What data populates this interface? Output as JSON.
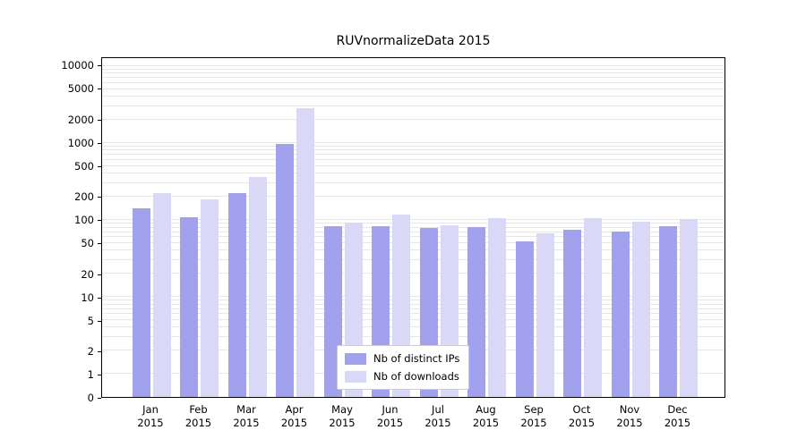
{
  "title": "RUVnormalizeData 2015",
  "chart_data": {
    "type": "bar",
    "scale": "symlog",
    "title": "RUVnormalizeData 2015",
    "categories": [
      "Jan",
      "Feb",
      "Mar",
      "Apr",
      "May",
      "Jun",
      "Jul",
      "Aug",
      "Sep",
      "Oct",
      "Nov",
      "Dec"
    ],
    "category_year": "2015",
    "series": [
      {
        "name": "Nb of distinct IPs",
        "color": "#a1a1ee",
        "values": [
          140,
          105,
          220,
          950,
          82,
          82,
          76,
          80,
          52,
          73,
          70,
          82
        ]
      },
      {
        "name": "Nb of downloads",
        "color": "#d9d9f7",
        "values": [
          220,
          180,
          350,
          2700,
          90,
          115,
          84,
          102,
          65,
          103,
          92,
          100
        ]
      }
    ],
    "yticks": [
      0,
      1,
      2,
      5,
      10,
      20,
      50,
      100,
      200,
      500,
      1000,
      2000,
      5000,
      10000
    ],
    "ylim": [
      0,
      14000
    ],
    "xlabel": "",
    "ylabel": "",
    "grid": true,
    "gridline_color": "#e7e7e7",
    "legend_position": "lower center"
  }
}
